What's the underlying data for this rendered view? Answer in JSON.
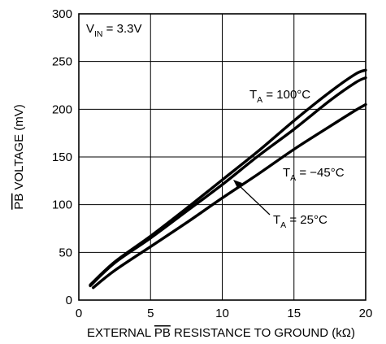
{
  "chart_data": {
    "type": "line",
    "xlabel_parts": [
      "EXTERNAL ",
      "PB",
      " RESISTANCE TO GROUND (kΩ)"
    ],
    "ylabel_parts": [
      "PB",
      " VOLTAGE (mV)"
    ],
    "xlim": [
      0,
      20
    ],
    "ylim": [
      0,
      300
    ],
    "xticks": [
      0,
      5,
      10,
      15,
      20
    ],
    "yticks": [
      0,
      50,
      100,
      150,
      200,
      250,
      300
    ],
    "grid": true,
    "annotations": {
      "vin": {
        "main": "V",
        "sub": "IN",
        "rest": " = 3.3V"
      },
      "t100": {
        "main": "T",
        "sub": "A",
        "rest": " = 100°C"
      },
      "tm45": {
        "main": "T",
        "sub": "A",
        "rest": " = −45°C"
      },
      "t25": {
        "main": "T",
        "sub": "A",
        "rest": " = 25°C"
      }
    },
    "series": [
      {
        "name": "T_A = 100°C",
        "x": [
          0.8,
          2.5,
          5,
          7.5,
          10,
          12.5,
          15,
          17.5,
          19.3,
          20
        ],
        "y": [
          16,
          40,
          67,
          96,
          126,
          156,
          188,
          218,
          237,
          241
        ]
      },
      {
        "name": "T_A = −45°C",
        "x": [
          0.8,
          2.5,
          5,
          7.5,
          10,
          12.5,
          15,
          17.5,
          19.3,
          20
        ],
        "y": [
          15,
          39,
          65,
          93,
          121,
          151,
          179,
          209,
          228,
          233
        ]
      },
      {
        "name": "T_A = 25°C",
        "x": [
          1,
          2.5,
          5,
          7.5,
          10,
          12.5,
          15,
          17.5,
          19.3,
          20
        ],
        "y": [
          13,
          31,
          56,
          81,
          107,
          132,
          158,
          182,
          199,
          205
        ]
      }
    ]
  }
}
